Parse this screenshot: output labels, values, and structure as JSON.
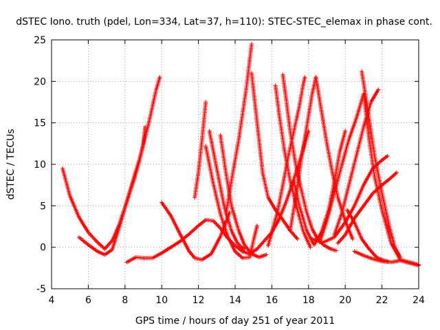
{
  "chart_data": {
    "type": "scatter",
    "title": "dSTEC Iono. truth (pdel, Lon=334, Lat=37, h=110): STEC-STEC_elemax in phase cont.",
    "xlabel": "GPS time / hours of day 251 of year 2011",
    "ylabel": "dSTEC  / TECUs",
    "xlim": [
      4,
      24
    ],
    "ylim": [
      -5,
      25
    ],
    "xticks": [
      "4",
      "6",
      "8",
      "10",
      "12",
      "14",
      "16",
      "18",
      "20",
      "22",
      "24"
    ],
    "yticks": [
      "-5",
      "0",
      "5",
      "10",
      "15",
      "20",
      "25"
    ],
    "grid": true,
    "marker": "+",
    "color": "#ff0000",
    "series": [
      {
        "x": [
          4.6,
          5.0,
          5.5,
          6.0,
          6.5,
          6.9,
          7.3,
          7.7,
          8.1,
          8.5,
          8.9,
          9.3,
          9.7,
          9.9
        ],
        "values": [
          9.5,
          6.2,
          3.6,
          1.8,
          0.6,
          -0.2,
          0.8,
          2.8,
          5.5,
          8.5,
          11.5,
          15.0,
          19.0,
          20.5
        ]
      },
      {
        "x": [
          5.5,
          6.0,
          6.5,
          6.9,
          7.3,
          7.7,
          8.1,
          8.5,
          8.8,
          9.0,
          9.1
        ],
        "values": [
          1.2,
          0.3,
          -0.5,
          -0.9,
          -0.3,
          2.5,
          5.5,
          8.2,
          10.5,
          12.5,
          14.5
        ]
      },
      {
        "x": [
          8.1,
          8.6,
          9.0,
          9.5,
          10.0,
          10.5,
          11.0,
          11.5,
          12.0,
          12.4,
          12.8,
          13.2,
          13.6,
          14.0,
          14.4,
          14.8,
          15.2,
          15.6,
          16.0,
          16.4,
          16.8,
          17.2,
          17.6,
          18.0
        ],
        "values": [
          -1.8,
          -1.2,
          -1.3,
          -1.3,
          -0.7,
          0.0,
          0.7,
          1.6,
          2.6,
          3.3,
          3.2,
          2.3,
          1.1,
          0.2,
          -0.5,
          -0.8,
          -0.2,
          0.8,
          1.8,
          3.4,
          5.6,
          8.2,
          11.0,
          14.0
        ]
      },
      {
        "x": [
          10.0,
          10.5,
          11.0,
          11.5,
          11.8,
          12.2,
          12.7,
          13.2,
          13.7
        ],
        "values": [
          5.4,
          3.8,
          1.6,
          -0.5,
          -1.3,
          -1.5,
          -0.8,
          1.3,
          4.2
        ]
      },
      {
        "x": [
          11.8,
          12.0,
          12.2,
          12.4
        ],
        "values": [
          6.0,
          9.0,
          13.0,
          17.5
        ]
      },
      {
        "x": [
          12.4,
          12.8,
          13.2,
          13.6,
          14.0,
          14.4,
          14.8,
          15.0,
          15.2
        ],
        "values": [
          12.2,
          7.8,
          4.0,
          1.3,
          -0.5,
          -1.3,
          -1.2,
          0.8,
          2.6
        ]
      },
      {
        "x": [
          12.6,
          13.0,
          13.4,
          13.8,
          14.1,
          14.3,
          14.5
        ],
        "values": [
          14.0,
          9.5,
          5.0,
          2.0,
          0.6,
          0.1,
          -0.2
        ]
      },
      {
        "x": [
          13.2,
          13.5,
          13.8,
          14.2,
          14.5,
          14.9,
          15.3,
          15.7
        ],
        "values": [
          13.5,
          9.0,
          5.0,
          2.0,
          0.3,
          -0.8,
          -1.2,
          -0.9
        ]
      },
      {
        "x": [
          13.5,
          13.8,
          14.2,
          14.6,
          14.9
        ],
        "values": [
          4.0,
          8.0,
          13.0,
          19.0,
          24.5
        ]
      },
      {
        "x": [
          14.9,
          15.2,
          15.5,
          15.8,
          16.2,
          16.6,
          17.0,
          17.4
        ],
        "values": [
          21.0,
          15.0,
          9.0,
          6.0,
          4.5,
          3.3,
          2.0,
          1.0
        ]
      },
      {
        "x": [
          16.2,
          16.4,
          16.7,
          17.0,
          17.4,
          17.7,
          17.9,
          18.1
        ],
        "values": [
          19.5,
          16.0,
          11.5,
          8.0,
          4.5,
          2.0,
          1.0,
          0.0
        ]
      },
      {
        "x": [
          15.8,
          16.0,
          16.3,
          16.6,
          16.9,
          17.2,
          17.5,
          17.7,
          17.8
        ],
        "values": [
          0.2,
          1.8,
          4.2,
          7.5,
          11.0,
          14.0,
          17.0,
          19.5,
          20.5
        ]
      },
      {
        "x": [
          16.6,
          16.8,
          17.0,
          17.3,
          17.6,
          17.9,
          18.2,
          18.5,
          18.8,
          19.2,
          19.5
        ],
        "values": [
          20.8,
          17.5,
          14.0,
          10.0,
          7.0,
          4.2,
          2.2,
          1.0,
          0.3,
          -0.2,
          -0.4
        ]
      },
      {
        "x": [
          17.0,
          17.3,
          17.6,
          17.9,
          18.2,
          18.4
        ],
        "values": [
          2.0,
          6.0,
          10.5,
          14.5,
          18.5,
          20.5
        ]
      },
      {
        "x": [
          18.4,
          18.7,
          19.0,
          19.3,
          19.6,
          20.0,
          20.4
        ],
        "values": [
          20.5,
          16.5,
          12.5,
          9.0,
          6.0,
          3.2,
          1.0
        ]
      },
      {
        "x": [
          17.2,
          17.5,
          17.9,
          18.3,
          18.7,
          19.1,
          19.4,
          19.7,
          20.0
        ],
        "values": [
          8.0,
          5.0,
          2.0,
          0.3,
          1.8,
          4.5,
          7.8,
          11.5,
          14.0
        ]
      },
      {
        "x": [
          18.6,
          19.0,
          19.4,
          19.8,
          20.2,
          20.6,
          21.0,
          21.3,
          21.6,
          22.0,
          22.5,
          23.0,
          23.5,
          24.0
        ],
        "values": [
          0.6,
          3.2,
          6.5,
          9.8,
          13.0,
          15.5,
          18.5,
          13.0,
          8.5,
          4.5,
          0.5,
          -1.5,
          -1.8,
          -2.1
        ]
      },
      {
        "x": [
          19.4,
          19.8,
          20.2,
          20.6,
          21.0,
          21.4,
          21.8
        ],
        "values": [
          1.5,
          4.0,
          7.5,
          11.0,
          14.5,
          17.5,
          19.0
        ]
      },
      {
        "x": [
          18.2,
          18.8,
          19.4,
          20.0,
          20.5,
          21.0,
          21.5,
          22.0,
          22.3
        ],
        "values": [
          1.0,
          0.6,
          1.2,
          3.0,
          5.0,
          7.5,
          9.5,
          10.5,
          11.0
        ]
      },
      {
        "x": [
          20.1,
          20.5,
          20.9,
          21.3,
          21.7,
          22.0,
          22.3
        ],
        "values": [
          4.5,
          3.0,
          1.0,
          -0.2,
          -1.2,
          -1.5,
          -1.7
        ]
      },
      {
        "x": [
          20.9,
          21.2,
          21.6,
          22.0,
          22.4,
          22.7,
          23.0
        ],
        "values": [
          21.2,
          17.0,
          11.0,
          6.5,
          2.5,
          0.0,
          -1.2
        ]
      },
      {
        "x": [
          19.6,
          20.0,
          20.5,
          21.0,
          21.5,
          22.0,
          22.4,
          22.8
        ],
        "values": [
          0.5,
          1.5,
          3.5,
          5.0,
          6.5,
          7.5,
          8.2,
          9.0
        ]
      },
      {
        "x": [
          20.5,
          21.0,
          21.5,
          22.0,
          22.5,
          23.0,
          23.5,
          24.0
        ],
        "values": [
          -0.5,
          -1.0,
          -1.4,
          -1.7,
          -1.8,
          -1.6,
          -1.9,
          -2.2
        ]
      }
    ]
  }
}
